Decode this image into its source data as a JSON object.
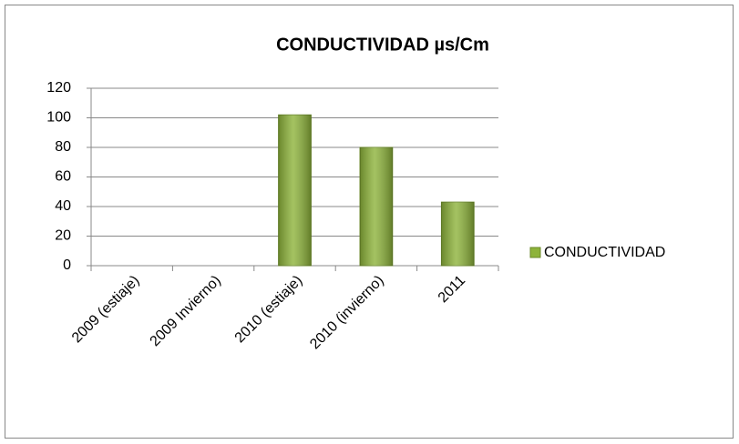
{
  "chart_data": {
    "type": "bar",
    "title": "CONDUCTIVIDAD µs/Cm",
    "categories": [
      "2009 (estiaje)",
      "2009  Invierno)",
      "2010  (estiaje)",
      "2010  (invierno)",
      "2011"
    ],
    "series": [
      {
        "name": "CONDUCTIVIDAD",
        "color": "#8db33a",
        "values": [
          null,
          null,
          102,
          80,
          43
        ]
      }
    ],
    "ylim": [
      0,
      120
    ],
    "yticks": [
      0,
      20,
      40,
      60,
      80,
      100,
      120
    ],
    "grid": true,
    "legend": "right"
  }
}
